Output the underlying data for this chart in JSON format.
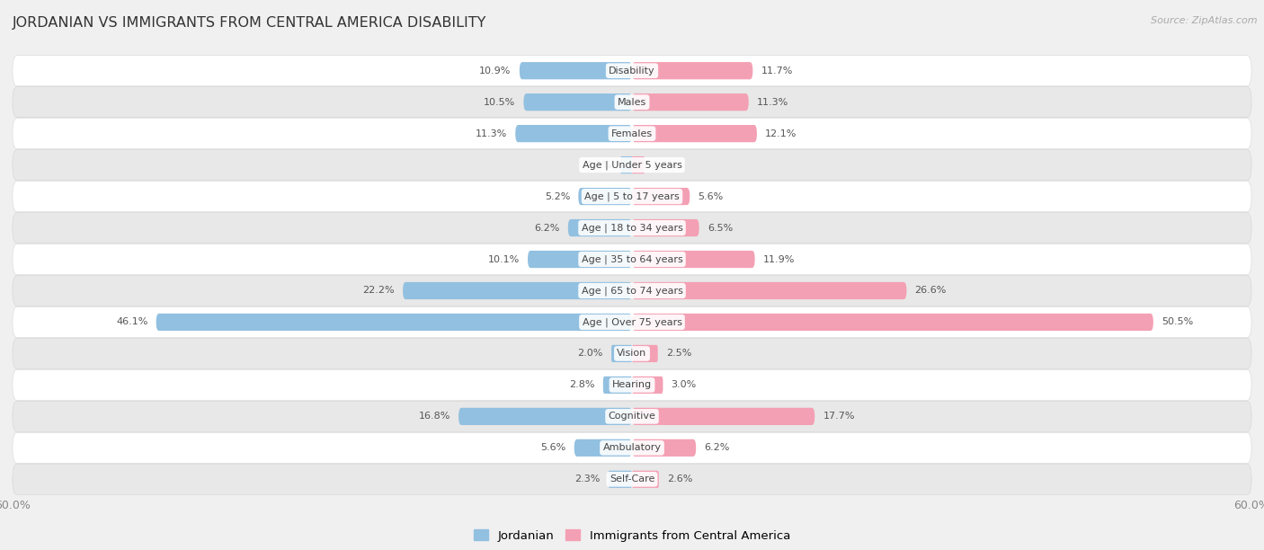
{
  "title": "JORDANIAN VS IMMIGRANTS FROM CENTRAL AMERICA DISABILITY",
  "source": "Source: ZipAtlas.com",
  "categories": [
    "Disability",
    "Males",
    "Females",
    "Age | Under 5 years",
    "Age | 5 to 17 years",
    "Age | 18 to 34 years",
    "Age | 35 to 64 years",
    "Age | 65 to 74 years",
    "Age | Over 75 years",
    "Vision",
    "Hearing",
    "Cognitive",
    "Ambulatory",
    "Self-Care"
  ],
  "jordanian": [
    10.9,
    10.5,
    11.3,
    1.1,
    5.2,
    6.2,
    10.1,
    22.2,
    46.1,
    2.0,
    2.8,
    16.8,
    5.6,
    2.3
  ],
  "immigrants": [
    11.7,
    11.3,
    12.1,
    1.2,
    5.6,
    6.5,
    11.9,
    26.6,
    50.5,
    2.5,
    3.0,
    17.7,
    6.2,
    2.6
  ],
  "jordanian_color": "#92c0e0",
  "immigrants_color": "#f4a0b4",
  "background_color": "#f0f0f0",
  "row_color_light": "#e8e8e8",
  "row_color_white": "#ffffff",
  "axis_max": 60.0,
  "label_fontsize": 8.0,
  "title_fontsize": 11.5,
  "source_fontsize": 8.0,
  "legend_labels": [
    "Jordanian",
    "Immigrants from Central America"
  ]
}
